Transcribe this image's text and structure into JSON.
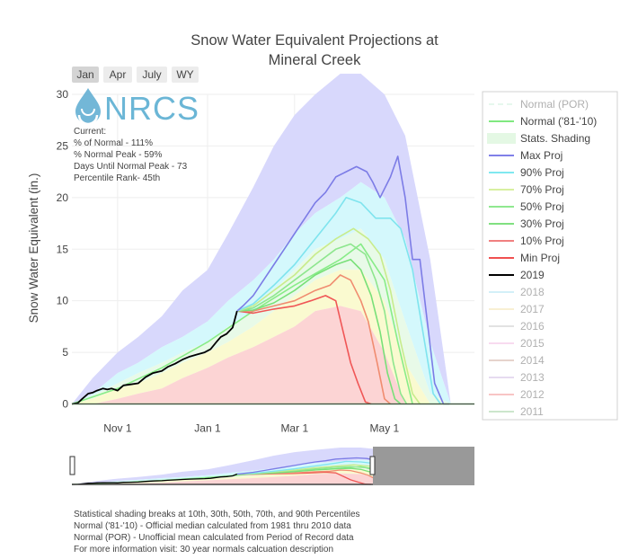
{
  "title_line1": "Snow Water Equivalent Projections at",
  "title_line2": "Mineral Creek",
  "range_buttons": [
    "Jan",
    "Apr",
    "July",
    "WY"
  ],
  "active_button": "Jan",
  "logo_text": "NRCS",
  "info": {
    "heading": "Current:",
    "lines": [
      "% of Normal - 111%",
      "% Normal Peak - 59%",
      "Days Until Normal Peak - 73",
      "Percentile Rank- 45th"
    ]
  },
  "footer": [
    "Statistical shading breaks at 10th, 30th, 50th, 70th, and 90th Percentiles",
    "Normal ('81-'10) - Official median calculated from 1981 thru 2010 data",
    "Normal (POR) - Unofficial mean calculated from Period of Record data",
    "For more information visit: 30 year normals calcuation description"
  ],
  "colors": {
    "max": "#8080e8",
    "p90": "#80e8f0",
    "p70": "#e0f0a0",
    "p50": "#90e890",
    "p30": "#80e080",
    "p10": "#f08080",
    "min": "#f05050",
    "y2019": "#000000",
    "normal8110": "#80e880",
    "band_outer": "#d8d8fc",
    "band_p90": "#d4f8fc",
    "band_mid": "#fafad0",
    "band_p10": "#fcd4d4"
  },
  "chart_data": {
    "type": "line",
    "title": "Snow Water Equivalent Projections at Mineral Creek",
    "ylabel": "Snow Water Equivalent (in.)",
    "ylim": [
      0,
      30
    ],
    "yticks": [
      0,
      5,
      10,
      15,
      20,
      25,
      30
    ],
    "xlim": [
      "2018-10-01",
      "2019-07-01"
    ],
    "xticks": [
      {
        "date": "2018-11-01",
        "label": "Nov  1"
      },
      {
        "date": "2019-01-01",
        "label": "Jan  1"
      },
      {
        "date": "2019-03-01",
        "label": "Mar  1"
      },
      {
        "date": "2019-05-01",
        "label": "May  1"
      }
    ],
    "grid": true,
    "legend_position": "right",
    "legend": [
      {
        "name": "Normal (POR)",
        "style": "dash",
        "color": "#c8f0d8",
        "visible": false
      },
      {
        "name": "Normal ('81-'10)",
        "style": "line",
        "color": "#80e880",
        "visible": true
      },
      {
        "name": "Stats. Shading",
        "style": "box",
        "color": "#e4f8e4",
        "visible": true
      },
      {
        "name": "Max Proj",
        "style": "line",
        "color": "#8080e8",
        "visible": true
      },
      {
        "name": "90% Proj",
        "style": "line",
        "color": "#80e8f0",
        "visible": true
      },
      {
        "name": "70% Proj",
        "style": "line",
        "color": "#d8f0a0",
        "visible": true
      },
      {
        "name": "50% Proj",
        "style": "line",
        "color": "#90e890",
        "visible": true
      },
      {
        "name": "30% Proj",
        "style": "line",
        "color": "#80e080",
        "visible": true
      },
      {
        "name": "10% Proj",
        "style": "line",
        "color": "#f08080",
        "visible": true
      },
      {
        "name": "Min Proj",
        "style": "line",
        "color": "#f05050",
        "visible": true
      },
      {
        "name": "2019",
        "style": "line",
        "color": "#000000",
        "visible": true
      },
      {
        "name": "2018",
        "style": "line",
        "color": "#a0e0f0",
        "visible": false
      },
      {
        "name": "2017",
        "style": "line",
        "color": "#f0e0a0",
        "visible": false
      },
      {
        "name": "2016",
        "style": "line",
        "color": "#c0c0c0",
        "visible": false
      },
      {
        "name": "2015",
        "style": "line",
        "color": "#f0b0e0",
        "visible": false
      },
      {
        "name": "2014",
        "style": "line",
        "color": "#c8a090",
        "visible": false
      },
      {
        "name": "2013",
        "style": "line",
        "color": "#c8b0e0",
        "visible": false
      },
      {
        "name": "2012",
        "style": "line",
        "color": "#f08080",
        "visible": false
      },
      {
        "name": "2011",
        "style": "line",
        "color": "#90c890",
        "visible": false
      }
    ],
    "bands": {
      "dates": [
        "2018-10-01",
        "2018-10-15",
        "2018-11-01",
        "2018-11-15",
        "2018-12-01",
        "2018-12-15",
        "2019-01-01",
        "2019-01-15",
        "2019-02-01",
        "2019-02-15",
        "2019-03-01",
        "2019-03-15",
        "2019-04-01",
        "2019-04-15",
        "2019-05-01",
        "2019-05-15",
        "2019-06-01",
        "2019-06-15",
        "2019-07-01"
      ],
      "max": [
        0,
        2.5,
        5,
        6.5,
        8.5,
        11,
        13,
        16.5,
        21,
        25,
        28,
        30,
        32,
        32,
        30,
        26,
        14,
        0,
        0
      ],
      "p90": [
        0,
        1,
        3,
        4,
        5.5,
        6.5,
        8,
        10,
        12,
        14,
        16.5,
        18.5,
        20,
        21.5,
        20,
        16,
        6,
        0,
        0
      ],
      "p70": [
        0,
        0.8,
        2,
        3,
        4,
        5,
        6,
        7.5,
        9,
        11,
        13,
        15,
        16,
        17,
        14,
        8,
        1,
        0,
        0
      ],
      "p30": [
        0,
        0.5,
        1.5,
        2,
        3,
        4,
        5,
        6,
        7.5,
        9,
        10.5,
        12,
        13,
        13,
        10,
        4,
        0,
        0,
        0
      ],
      "p10": [
        0,
        0,
        0.5,
        1,
        1.5,
        2.5,
        3.5,
        4.5,
        5.5,
        6.5,
        7.5,
        9,
        9.5,
        9,
        5,
        0,
        0,
        0,
        0
      ]
    },
    "series": [
      {
        "name": "2019",
        "x": [
          "2018-10-01",
          "2018-10-05",
          "2018-10-08",
          "2018-10-12",
          "2018-10-15",
          "2018-10-18",
          "2018-10-22",
          "2018-10-25",
          "2018-10-28",
          "2018-11-01",
          "2018-11-05",
          "2018-11-10",
          "2018-11-15",
          "2018-11-20",
          "2018-11-25",
          "2018-12-01",
          "2018-12-05",
          "2018-12-10",
          "2018-12-15",
          "2018-12-20",
          "2018-12-25",
          "2018-12-30",
          "2019-01-03",
          "2019-01-07",
          "2019-01-10",
          "2019-01-14",
          "2019-01-18",
          "2019-01-21"
        ],
        "y": [
          0,
          0.1,
          0.5,
          1.0,
          1.1,
          1.3,
          1.5,
          1.4,
          1.5,
          1.3,
          1.8,
          1.9,
          2.0,
          2.6,
          3.0,
          3.2,
          3.6,
          3.9,
          4.3,
          4.6,
          4.8,
          5.0,
          5.3,
          6.0,
          6.5,
          6.8,
          7.4,
          9.0
        ]
      },
      {
        "name": "Max Proj",
        "x": [
          "2019-01-21",
          "2019-01-25",
          "2019-02-01",
          "2019-02-08",
          "2019-02-15",
          "2019-02-22",
          "2019-03-01",
          "2019-03-08",
          "2019-03-15",
          "2019-03-22",
          "2019-03-29",
          "2019-04-05",
          "2019-04-12",
          "2019-04-19",
          "2019-04-23",
          "2019-04-28",
          "2019-05-05",
          "2019-05-10",
          "2019-05-15",
          "2019-05-20",
          "2019-05-25",
          "2019-05-30",
          "2019-06-04",
          "2019-06-10",
          "2019-06-14"
        ],
        "y": [
          9.0,
          9.5,
          10.5,
          12,
          13.5,
          15,
          16.5,
          18,
          19.5,
          20.5,
          22,
          22.5,
          23,
          22.5,
          21.5,
          20,
          22,
          24,
          20,
          14,
          14,
          8,
          2,
          0,
          0
        ]
      },
      {
        "name": "90% Proj",
        "x": [
          "2019-01-21",
          "2019-02-01",
          "2019-02-15",
          "2019-03-01",
          "2019-03-15",
          "2019-03-29",
          "2019-04-05",
          "2019-04-15",
          "2019-04-25",
          "2019-05-05",
          "2019-05-12",
          "2019-05-20",
          "2019-05-27",
          "2019-06-03",
          "2019-06-08"
        ],
        "y": [
          9.0,
          9.7,
          11.5,
          13.5,
          16,
          18.5,
          20,
          19.5,
          18,
          18,
          17,
          13,
          7,
          1,
          0
        ]
      },
      {
        "name": "70% Proj",
        "x": [
          "2019-01-21",
          "2019-02-01",
          "2019-02-15",
          "2019-03-01",
          "2019-03-15",
          "2019-03-29",
          "2019-04-10",
          "2019-04-20",
          "2019-04-28",
          "2019-05-05",
          "2019-05-12",
          "2019-05-20",
          "2019-05-25"
        ],
        "y": [
          9.0,
          9.5,
          11,
          12.5,
          14.5,
          16,
          17,
          16,
          14.5,
          11,
          6,
          1,
          0
        ]
      },
      {
        "name": "50% Proj",
        "x": [
          "2019-01-21",
          "2019-02-01",
          "2019-02-15",
          "2019-03-01",
          "2019-03-15",
          "2019-03-29",
          "2019-04-08",
          "2019-04-18",
          "2019-04-25",
          "2019-05-01",
          "2019-05-07",
          "2019-05-12",
          "2019-05-16"
        ],
        "y": [
          9.0,
          9.3,
          10.5,
          12,
          13.5,
          15,
          15.5,
          14.5,
          12,
          9,
          4,
          1,
          0
        ]
      },
      {
        "name": "30% Proj",
        "x": [
          "2019-01-21",
          "2019-02-01",
          "2019-02-15",
          "2019-03-01",
          "2019-03-15",
          "2019-03-29",
          "2019-04-08",
          "2019-04-15",
          "2019-04-22",
          "2019-04-28",
          "2019-05-03",
          "2019-05-08",
          "2019-05-12"
        ],
        "y": [
          9.0,
          9.1,
          9.8,
          11,
          12.5,
          13.5,
          14,
          13,
          10.5,
          7,
          3,
          0.5,
          0
        ]
      },
      {
        "name": "10% Proj",
        "x": [
          "2019-01-21",
          "2019-02-01",
          "2019-02-15",
          "2019-03-01",
          "2019-03-15",
          "2019-03-25",
          "2019-04-01",
          "2019-04-08",
          "2019-04-15",
          "2019-04-20",
          "2019-04-26",
          "2019-05-01",
          "2019-05-05"
        ],
        "y": [
          9.0,
          9.0,
          9.5,
          10,
          11,
          11.5,
          12.5,
          12,
          10,
          8,
          4,
          0.5,
          0
        ]
      },
      {
        "name": "Min Proj",
        "x": [
          "2019-01-21",
          "2019-02-01",
          "2019-02-15",
          "2019-03-01",
          "2019-03-12",
          "2019-03-22",
          "2019-03-29",
          "2019-04-03",
          "2019-04-08",
          "2019-04-13",
          "2019-04-18",
          "2019-04-22"
        ],
        "y": [
          9.0,
          8.8,
          9.2,
          9.5,
          10,
          10.5,
          10,
          7,
          4,
          2,
          0.2,
          0
        ]
      },
      {
        "name": "Normal ('81-'10)",
        "x": [
          "2018-10-01",
          "2018-11-01",
          "2018-12-01",
          "2019-01-01",
          "2019-02-01",
          "2019-03-01",
          "2019-04-01",
          "2019-04-15",
          "2019-05-01",
          "2019-05-10",
          "2019-05-20"
        ],
        "y": [
          0,
          1.5,
          3.5,
          6,
          9,
          11.5,
          14,
          15.5,
          12,
          6,
          0
        ]
      }
    ]
  }
}
